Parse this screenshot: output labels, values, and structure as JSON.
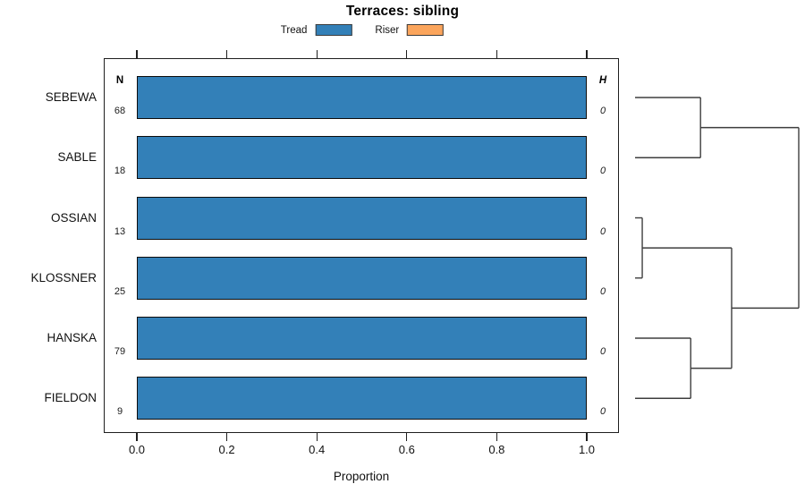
{
  "title": "Terraces: sibling",
  "legend": {
    "items": [
      {
        "label": "Tread",
        "color": "#3380B8"
      },
      {
        "label": "Riser",
        "color": "#FBA55C"
      }
    ]
  },
  "columns": {
    "n": "N",
    "h": "H"
  },
  "rows": [
    {
      "label": "SEBEWA",
      "n": "68",
      "h": "0"
    },
    {
      "label": "SABLE",
      "n": "18",
      "h": "0"
    },
    {
      "label": "OSSIAN",
      "n": "13",
      "h": "0"
    },
    {
      "label": "KLOSSNER",
      "n": "25",
      "h": "0"
    },
    {
      "label": "HANSKA",
      "n": "79",
      "h": "0"
    },
    {
      "label": "FIELDON",
      "n": "9",
      "h": "0"
    }
  ],
  "x_axis": {
    "label": "Proportion",
    "ticks": [
      {
        "label": "0.0",
        "value": 0.0
      },
      {
        "label": "0.2",
        "value": 0.2
      },
      {
        "label": "0.4",
        "value": 0.4
      },
      {
        "label": "0.6",
        "value": 0.6
      },
      {
        "label": "0.8",
        "value": 0.8
      },
      {
        "label": "1.0",
        "value": 1.0
      }
    ]
  },
  "colors": {
    "tread": "#3380B8",
    "riser": "#FBA55C",
    "bar_border": "#0c0c0c",
    "dendro_line": "#3e3e3e",
    "panel_border": "#1f1f1f"
  },
  "chart_data": {
    "type": "bar",
    "orientation": "horizontal",
    "title": "Terraces: sibling",
    "categories": [
      "SEBEWA",
      "SABLE",
      "OSSIAN",
      "KLOSSNER",
      "HANSKA",
      "FIELDON"
    ],
    "series": [
      {
        "name": "Tread",
        "color": "#3380B8",
        "values": [
          1.0,
          1.0,
          1.0,
          1.0,
          1.0,
          1.0
        ]
      },
      {
        "name": "Riser",
        "color": "#FBA55C",
        "values": [
          0,
          0,
          0,
          0,
          0,
          0
        ]
      }
    ],
    "n_values": [
      68,
      18,
      13,
      25,
      79,
      9
    ],
    "h_values": [
      0,
      0,
      0,
      0,
      0,
      0
    ],
    "xlabel": "Proportion",
    "xlim": [
      0,
      1.08
    ],
    "xticks": [
      0.0,
      0.2,
      0.4,
      0.6,
      0.8,
      1.0
    ],
    "legend_position": "top",
    "grid": false,
    "dendrogram": {
      "description": "right-side cluster dendrogram, merge heights normalized 0-1 from leaves to root",
      "merges": [
        {
          "a": "leaf:0",
          "b": "leaf:1",
          "h": 0.4
        },
        {
          "a": "leaf:2",
          "b": "leaf:3",
          "h": 0.044
        },
        {
          "a": "leaf:4",
          "b": "leaf:5",
          "h": 0.34
        },
        {
          "a": "merge:1",
          "b": "merge:2",
          "h": 0.59
        },
        {
          "a": "merge:0",
          "b": "merge:3",
          "h": 1.0
        }
      ]
    }
  }
}
